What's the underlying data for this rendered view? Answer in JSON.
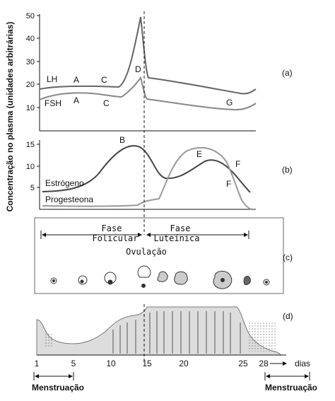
{
  "y_axis_title": "Concentração no plasma (unidades arbitrárias)",
  "panel_a": {
    "tag": "(a)",
    "y_ticks": [
      "50",
      "40",
      "30",
      "20",
      "10"
    ],
    "lh_label": "LH",
    "fsh_label": "FSH",
    "point_labels": {
      "lh_a": "A",
      "fsh_a": "A",
      "lh_c": "C",
      "fsh_c": "C",
      "d": "D",
      "g": "G"
    }
  },
  "panel_b": {
    "tag": "(b)",
    "y_ticks": [
      "15",
      "10",
      "5"
    ],
    "estrogen_label": "Estrógeno",
    "progesterone_label": "Progesteona",
    "point_labels": {
      "b": "B",
      "e": "E",
      "f1": "F",
      "f2": "F"
    }
  },
  "panel_c": {
    "tag": "(c)",
    "follicular": [
      "Fase",
      "Folicular"
    ],
    "luteal": [
      "Fase",
      "Luteínica"
    ],
    "ovulation": "Ovulação"
  },
  "panel_d": {
    "tag": "(d)",
    "day_ticks": [
      "1",
      "5",
      "10",
      "15",
      "20",
      "25",
      "28"
    ],
    "days_label": "dias",
    "menstruation_left": "Menstruação",
    "menstruation_right": "Menstruação"
  }
}
